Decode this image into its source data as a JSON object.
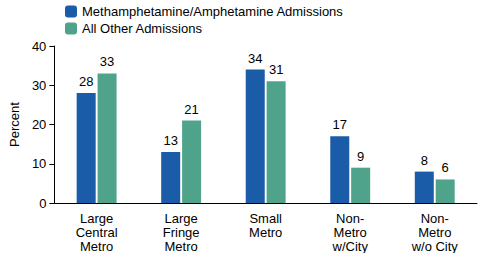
{
  "chart_data": {
    "type": "bar",
    "categories": [
      "Large\nCentral\nMetro",
      "Large\nFringe\nMetro",
      "Small\nMetro",
      "Non-\nMetro\nw/City",
      "Non-\nMetro\nw/o City"
    ],
    "series": [
      {
        "name": "Methamphetamine/Amphetamine Admissions",
        "color": "#1b5ca8",
        "values": [
          28,
          13,
          34,
          17,
          8
        ]
      },
      {
        "name": "All Other Admissions",
        "color": "#4fa38a",
        "values": [
          33,
          21,
          31,
          9,
          6
        ]
      }
    ],
    "y_label": "Percent",
    "ylim": [
      0,
      40
    ],
    "yticks": [
      0,
      10,
      20,
      30,
      40
    ],
    "grid": false,
    "legend": "top-left",
    "data_labels": true
  }
}
